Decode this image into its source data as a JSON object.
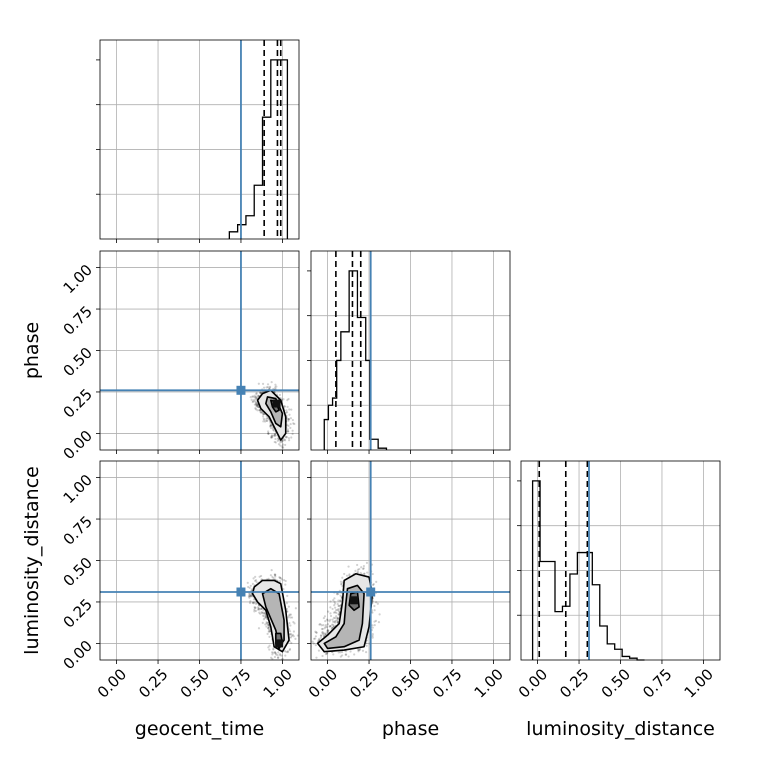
{
  "chart_data": {
    "type": "corner",
    "parameters": [
      "geocent_time",
      "phase",
      "luminosity_distance"
    ],
    "truths": {
      "geocent_time": 0.75,
      "phase": 0.26,
      "luminosity_distance": 0.31
    },
    "axes_range": [
      -0.1,
      1.1
    ],
    "tick_labels": [
      "0.00",
      "0.25",
      "0.50",
      "0.75",
      "1.00"
    ],
    "grid": true,
    "colors": {
      "truth": "#4682b4",
      "hist": "#000000",
      "scatter": "#000000",
      "grid": "#b0b0b0"
    },
    "histograms": [
      {
        "parameter": "geocent_time",
        "bin_edges": [
          0.68,
          0.73,
          0.78,
          0.83,
          0.88,
          0.93,
          0.98,
          1.03
        ],
        "counts": [
          0.04,
          0.08,
          0.13,
          0.3,
          0.68,
          1.0,
          1.0
        ],
        "quantiles": [
          0.89,
          0.97,
          0.99
        ]
      },
      {
        "parameter": "phase",
        "bin_edges": [
          -0.02,
          0.005,
          0.03,
          0.055,
          0.08,
          0.105,
          0.13,
          0.155,
          0.18,
          0.205,
          0.23,
          0.255,
          0.28,
          0.305,
          0.33,
          0.355
        ],
        "counts": [
          0.17,
          0.25,
          0.29,
          0.5,
          0.66,
          0.66,
          1.0,
          1.0,
          0.74,
          0.74,
          0.5,
          0.06,
          0.06,
          0.01,
          0.01
        ],
        "quantiles": [
          0.05,
          0.15,
          0.2
        ]
      },
      {
        "parameter": "luminosity_distance",
        "bin_edges": [
          -0.03,
          0.015,
          0.06,
          0.105,
          0.15,
          0.195,
          0.24,
          0.285,
          0.33,
          0.375,
          0.42,
          0.465,
          0.51,
          0.555,
          0.6,
          0.645
        ],
        "counts": [
          1.0,
          0.55,
          0.55,
          0.27,
          0.3,
          0.48,
          0.6,
          0.6,
          0.42,
          0.19,
          0.09,
          0.06,
          0.02,
          0.01,
          0.0
        ],
        "quantiles": [
          0.01,
          0.17,
          0.3
        ]
      }
    ],
    "pair_plots": [
      {
        "x": "geocent_time",
        "y": "phase",
        "scatter_center": [
          0.92,
          0.2
        ],
        "contours": [
          {
            "level": "outer",
            "points": [
              [
                0.88,
                0.24
              ],
              [
                0.93,
                0.26
              ],
              [
                0.99,
                0.2
              ],
              [
                1.02,
                0.1
              ],
              [
                1.02,
                0.0
              ],
              [
                0.99,
                -0.04
              ],
              [
                0.96,
                0.02
              ],
              [
                0.92,
                0.1
              ],
              [
                0.87,
                0.15
              ],
              [
                0.85,
                0.2
              ]
            ]
          },
          {
            "level": "middle",
            "points": [
              [
                0.91,
                0.22
              ],
              [
                0.96,
                0.21
              ],
              [
                1.0,
                0.12
              ],
              [
                0.99,
                0.04
              ],
              [
                0.96,
                0.06
              ],
              [
                0.93,
                0.13
              ],
              [
                0.9,
                0.18
              ]
            ]
          },
          {
            "level": "inner",
            "points": [
              [
                0.93,
                0.2
              ],
              [
                0.96,
                0.19
              ],
              [
                0.98,
                0.14
              ],
              [
                0.96,
                0.13
              ],
              [
                0.94,
                0.16
              ]
            ]
          }
        ],
        "core": [
          0.965,
          0.18
        ]
      },
      {
        "x": "geocent_time",
        "y": "luminosity_distance",
        "scatter_center": [
          0.92,
          0.25
        ],
        "contours": [
          {
            "level": "outer",
            "points": [
              [
                0.83,
                0.34
              ],
              [
                0.88,
                0.38
              ],
              [
                0.95,
                0.38
              ],
              [
                0.99,
                0.36
              ],
              [
                1.02,
                0.2
              ],
              [
                1.04,
                0.02
              ],
              [
                1.0,
                -0.05
              ],
              [
                0.95,
                -0.02
              ],
              [
                0.93,
                0.1
              ],
              [
                0.9,
                0.2
              ],
              [
                0.85,
                0.25
              ],
              [
                0.82,
                0.3
              ]
            ]
          },
          {
            "level": "middle",
            "points": [
              [
                0.88,
                0.3
              ],
              [
                0.93,
                0.33
              ],
              [
                0.98,
                0.3
              ],
              [
                1.01,
                0.14
              ],
              [
                1.01,
                0.02
              ],
              [
                0.98,
                -0.02
              ],
              [
                0.96,
                0.08
              ],
              [
                0.93,
                0.15
              ],
              [
                0.9,
                0.22
              ]
            ]
          },
          {
            "level": "inner",
            "points": [
              [
                0.96,
                0.06
              ],
              [
                0.99,
                0.06
              ],
              [
                1.0,
                0.0
              ],
              [
                0.98,
                -0.03
              ],
              [
                0.96,
                0.0
              ]
            ]
          }
        ],
        "core": [
          0.98,
          0.0
        ]
      },
      {
        "x": "phase",
        "y": "luminosity_distance",
        "scatter_center": [
          0.14,
          0.12
        ],
        "contours": [
          {
            "level": "outer",
            "points": [
              [
                0.1,
                0.38
              ],
              [
                0.17,
                0.42
              ],
              [
                0.25,
                0.4
              ],
              [
                0.27,
                0.3
              ],
              [
                0.25,
                0.1
              ],
              [
                0.22,
                -0.02
              ],
              [
                0.1,
                -0.04
              ],
              [
                -0.02,
                -0.05
              ],
              [
                -0.06,
                0.0
              ],
              [
                0.0,
                0.05
              ],
              [
                0.07,
                0.12
              ],
              [
                0.09,
                0.25
              ]
            ]
          },
          {
            "level": "middle",
            "points": [
              [
                0.12,
                0.33
              ],
              [
                0.18,
                0.35
              ],
              [
                0.22,
                0.3
              ],
              [
                0.21,
                0.12
              ],
              [
                0.19,
                0.02
              ],
              [
                0.1,
                -0.02
              ],
              [
                0.0,
                -0.03
              ],
              [
                -0.02,
                0.0
              ],
              [
                0.05,
                0.04
              ],
              [
                0.1,
                0.12
              ],
              [
                0.11,
                0.24
              ]
            ]
          },
          {
            "level": "inner",
            "points": [
              [
                0.14,
                0.3
              ],
              [
                0.18,
                0.31
              ],
              [
                0.19,
                0.22
              ],
              [
                0.16,
                0.2
              ],
              [
                0.13,
                0.23
              ]
            ]
          }
        ],
        "core": [
          0.16,
          0.26
        ]
      }
    ]
  }
}
